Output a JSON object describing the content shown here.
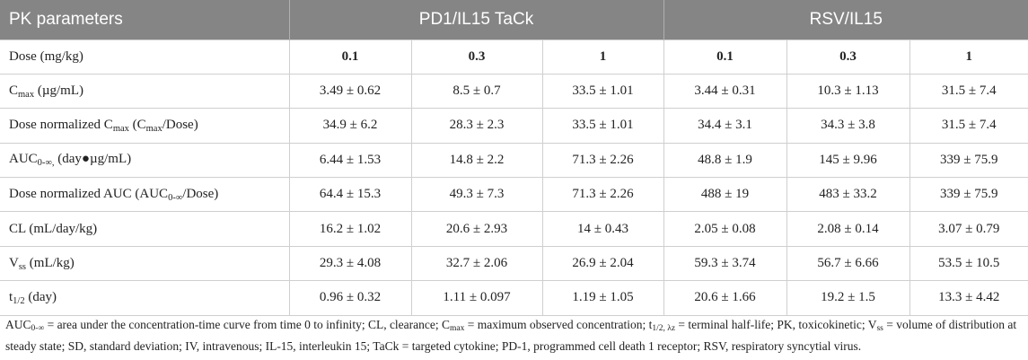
{
  "header": {
    "col_label": "PK parameters",
    "group1": "PD1/IL15 TaCk",
    "group2": "RSV/IL15"
  },
  "rows": {
    "dose": {
      "label": "Dose (mg/kg)",
      "values": [
        "0.1",
        "0.3",
        "1",
        "0.1",
        "0.3",
        "1"
      ]
    },
    "cmax": {
      "label_pre": "C",
      "label_sub": "max",
      "label_post": " (µg/mL)",
      "values": [
        "3.49 ± 0.62",
        "8.5 ± 0.7",
        "33.5 ± 1.01",
        "3.44 ± 0.31",
        "10.3 ± 1.13",
        "31.5 ± 7.4"
      ]
    },
    "dn_cmax": {
      "label_a": "Dose normalized C",
      "label_sub1": "max",
      "label_b": " (C",
      "label_sub2": "max",
      "label_c": "/Dose)",
      "values": [
        "34.9 ± 6.2",
        "28.3 ± 2.3",
        "33.5 ± 1.01",
        "34.4 ± 3.1",
        "34.3 ± 3.8",
        "31.5 ± 7.4"
      ]
    },
    "auc": {
      "label_pre": "AUC",
      "label_sub": "0-∞,",
      "label_post": " (day●µg/mL)",
      "values": [
        "6.44 ± 1.53",
        "14.8 ± 2.2",
        "71.3 ± 2.26",
        "48.8 ± 1.9",
        "145 ± 9.96",
        "339 ± 75.9"
      ]
    },
    "dn_auc": {
      "label_a": "Dose normalized AUC (AUC",
      "label_sub": "0-∞",
      "label_b": "/Dose)",
      "values": [
        "64.4 ± 15.3",
        "49.3 ± 7.3",
        "71.3 ± 2.26",
        "488 ± 19",
        "483 ± 33.2",
        "339 ± 75.9"
      ]
    },
    "cl": {
      "label": "CL (mL/day/kg)",
      "values": [
        "16.2 ± 1.02",
        "20.6 ± 2.93",
        "14 ± 0.43",
        "2.05 ± 0.08",
        "2.08 ± 0.14",
        "3.07 ± 0.79"
      ]
    },
    "vss": {
      "label_pre": "V",
      "label_sub": "ss",
      "label_post": " (mL/kg)",
      "values": [
        "29.3 ± 4.08",
        "32.7 ± 2.06",
        "26.9 ± 2.04",
        "59.3 ± 3.74",
        "56.7 ± 6.66",
        "53.5 ± 10.5"
      ]
    },
    "thalf": {
      "label_pre": "t",
      "label_sub": "1/2",
      "label_post": " (day)",
      "values": [
        "0.96 ± 0.32",
        "1.11 ± 0.097",
        "1.19 ± 1.05",
        "20.6 ± 1.66",
        "19.2 ± 1.5",
        "13.3 ± 4.42"
      ]
    }
  },
  "footnote": {
    "p1": "AUC",
    "s1": "0-∞",
    "p2": " = area under the concentration-time curve from time 0 to infinity; CL, clearance; C",
    "s2": "max",
    "p3": " = maximum observed concentration; t",
    "s3": "1/2, λz",
    "p4": " = terminal half-life; PK, toxicokinetic; V",
    "s4": "ss",
    "p5": " = volume of distribution at steady state; SD, standard deviation; IV, intravenous; IL-15, interleukin 15; TaCk = targeted cytokine; PD-1, programmed cell death 1 receptor; RSV, respiratory syncytial virus."
  }
}
